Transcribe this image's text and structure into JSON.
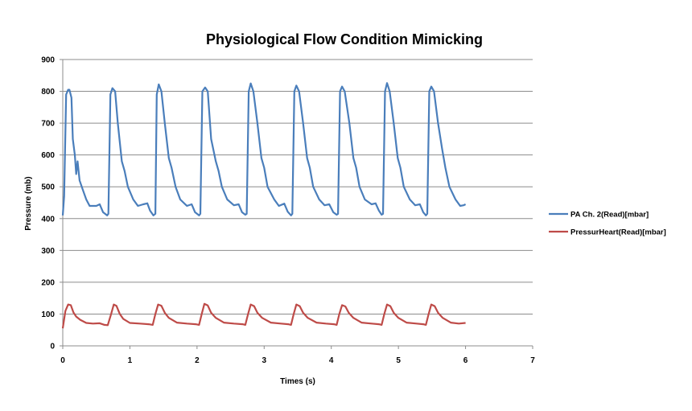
{
  "chart_data": {
    "type": "line",
    "title": "Physiological Flow Condition Mimicking",
    "xlabel": "Times (s)",
    "ylabel": "Pressure (mb)",
    "xlim": [
      0,
      7
    ],
    "ylim": [
      0,
      900
    ],
    "x_ticks": [
      "0",
      "1",
      "2",
      "3",
      "4",
      "5",
      "6",
      "7"
    ],
    "y_ticks": [
      "0",
      "100",
      "200",
      "300",
      "400",
      "500",
      "600",
      "700",
      "800",
      "900"
    ],
    "grid": "horizontal",
    "legend_position": "right",
    "series": [
      {
        "name": "PA Ch.  2(Read)[mbar]",
        "color": "#4a7ebb",
        "points": [
          [
            0.0,
            410
          ],
          [
            0.02,
            470
          ],
          [
            0.05,
            790
          ],
          [
            0.08,
            805
          ],
          [
            0.1,
            805
          ],
          [
            0.13,
            780
          ],
          [
            0.15,
            650
          ],
          [
            0.18,
            600
          ],
          [
            0.2,
            540
          ],
          [
            0.22,
            580
          ],
          [
            0.25,
            520
          ],
          [
            0.3,
            490
          ],
          [
            0.35,
            460
          ],
          [
            0.4,
            440
          ],
          [
            0.5,
            440
          ],
          [
            0.55,
            445
          ],
          [
            0.6,
            420
          ],
          [
            0.66,
            410
          ],
          [
            0.68,
            415
          ],
          [
            0.71,
            790
          ],
          [
            0.74,
            810
          ],
          [
            0.78,
            800
          ],
          [
            0.82,
            700
          ],
          [
            0.88,
            580
          ],
          [
            0.92,
            550
          ],
          [
            0.97,
            500
          ],
          [
            1.05,
            460
          ],
          [
            1.12,
            440
          ],
          [
            1.2,
            445
          ],
          [
            1.26,
            448
          ],
          [
            1.3,
            425
          ],
          [
            1.35,
            410
          ],
          [
            1.38,
            415
          ],
          [
            1.4,
            790
          ],
          [
            1.43,
            822
          ],
          [
            1.47,
            800
          ],
          [
            1.52,
            700
          ],
          [
            1.58,
            590
          ],
          [
            1.62,
            560
          ],
          [
            1.68,
            500
          ],
          [
            1.75,
            460
          ],
          [
            1.85,
            440
          ],
          [
            1.92,
            445
          ],
          [
            1.97,
            420
          ],
          [
            2.03,
            410
          ],
          [
            2.05,
            415
          ],
          [
            2.08,
            800
          ],
          [
            2.12,
            812
          ],
          [
            2.16,
            800
          ],
          [
            2.21,
            650
          ],
          [
            2.28,
            580
          ],
          [
            2.32,
            550
          ],
          [
            2.37,
            500
          ],
          [
            2.45,
            460
          ],
          [
            2.55,
            442
          ],
          [
            2.62,
            445
          ],
          [
            2.67,
            420
          ],
          [
            2.72,
            412
          ],
          [
            2.74,
            415
          ],
          [
            2.77,
            800
          ],
          [
            2.8,
            825
          ],
          [
            2.84,
            800
          ],
          [
            2.9,
            700
          ],
          [
            2.96,
            590
          ],
          [
            3.0,
            560
          ],
          [
            3.05,
            500
          ],
          [
            3.15,
            460
          ],
          [
            3.22,
            440
          ],
          [
            3.3,
            447
          ],
          [
            3.35,
            422
          ],
          [
            3.4,
            410
          ],
          [
            3.42,
            415
          ],
          [
            3.45,
            800
          ],
          [
            3.48,
            818
          ],
          [
            3.52,
            800
          ],
          [
            3.58,
            700
          ],
          [
            3.64,
            590
          ],
          [
            3.68,
            560
          ],
          [
            3.73,
            500
          ],
          [
            3.82,
            460
          ],
          [
            3.9,
            442
          ],
          [
            3.97,
            445
          ],
          [
            4.03,
            420
          ],
          [
            4.08,
            412
          ],
          [
            4.1,
            415
          ],
          [
            4.13,
            800
          ],
          [
            4.16,
            815
          ],
          [
            4.2,
            800
          ],
          [
            4.27,
            700
          ],
          [
            4.33,
            590
          ],
          [
            4.37,
            560
          ],
          [
            4.42,
            500
          ],
          [
            4.5,
            460
          ],
          [
            4.6,
            445
          ],
          [
            4.66,
            448
          ],
          [
            4.71,
            425
          ],
          [
            4.75,
            412
          ],
          [
            4.77,
            415
          ],
          [
            4.8,
            800
          ],
          [
            4.83,
            826
          ],
          [
            4.87,
            800
          ],
          [
            4.93,
            700
          ],
          [
            4.99,
            590
          ],
          [
            5.03,
            560
          ],
          [
            5.08,
            500
          ],
          [
            5.17,
            460
          ],
          [
            5.25,
            442
          ],
          [
            5.32,
            445
          ],
          [
            5.37,
            420
          ],
          [
            5.41,
            410
          ],
          [
            5.43,
            415
          ],
          [
            5.46,
            800
          ],
          [
            5.49,
            815
          ],
          [
            5.53,
            800
          ],
          [
            5.59,
            700
          ],
          [
            5.65,
            620
          ],
          [
            5.7,
            560
          ],
          [
            5.76,
            500
          ],
          [
            5.85,
            460
          ],
          [
            5.92,
            440
          ],
          [
            5.97,
            442
          ],
          [
            6.0,
            445
          ]
        ]
      },
      {
        "name": "PressurHeart(Read)[mbar]",
        "color": "#be4b48",
        "points": [
          [
            0.0,
            55
          ],
          [
            0.04,
            110
          ],
          [
            0.08,
            130
          ],
          [
            0.12,
            128
          ],
          [
            0.16,
            105
          ],
          [
            0.2,
            92
          ],
          [
            0.26,
            82
          ],
          [
            0.35,
            72
          ],
          [
            0.45,
            70
          ],
          [
            0.55,
            71
          ],
          [
            0.62,
            66
          ],
          [
            0.67,
            65
          ],
          [
            0.72,
            100
          ],
          [
            0.76,
            130
          ],
          [
            0.8,
            126
          ],
          [
            0.85,
            100
          ],
          [
            0.9,
            85
          ],
          [
            1.0,
            72
          ],
          [
            1.15,
            70
          ],
          [
            1.28,
            68
          ],
          [
            1.34,
            66
          ],
          [
            1.38,
            100
          ],
          [
            1.42,
            130
          ],
          [
            1.47,
            126
          ],
          [
            1.52,
            104
          ],
          [
            1.58,
            88
          ],
          [
            1.7,
            73
          ],
          [
            1.85,
            70
          ],
          [
            1.98,
            68
          ],
          [
            2.03,
            66
          ],
          [
            2.07,
            100
          ],
          [
            2.11,
            132
          ],
          [
            2.16,
            127
          ],
          [
            2.21,
            104
          ],
          [
            2.28,
            88
          ],
          [
            2.4,
            73
          ],
          [
            2.55,
            70
          ],
          [
            2.68,
            68
          ],
          [
            2.72,
            66
          ],
          [
            2.76,
            100
          ],
          [
            2.8,
            130
          ],
          [
            2.85,
            125
          ],
          [
            2.9,
            104
          ],
          [
            2.97,
            88
          ],
          [
            3.1,
            73
          ],
          [
            3.25,
            70
          ],
          [
            3.36,
            68
          ],
          [
            3.4,
            66
          ],
          [
            3.44,
            100
          ],
          [
            3.48,
            130
          ],
          [
            3.53,
            125
          ],
          [
            3.58,
            104
          ],
          [
            3.65,
            88
          ],
          [
            3.78,
            73
          ],
          [
            3.92,
            70
          ],
          [
            4.04,
            68
          ],
          [
            4.08,
            66
          ],
          [
            4.12,
            100
          ],
          [
            4.16,
            128
          ],
          [
            4.21,
            124
          ],
          [
            4.26,
            104
          ],
          [
            4.33,
            88
          ],
          [
            4.45,
            73
          ],
          [
            4.6,
            70
          ],
          [
            4.71,
            68
          ],
          [
            4.75,
            66
          ],
          [
            4.79,
            100
          ],
          [
            4.83,
            130
          ],
          [
            4.88,
            125
          ],
          [
            4.93,
            104
          ],
          [
            5.0,
            88
          ],
          [
            5.12,
            73
          ],
          [
            5.27,
            70
          ],
          [
            5.37,
            68
          ],
          [
            5.41,
            66
          ],
          [
            5.45,
            100
          ],
          [
            5.49,
            130
          ],
          [
            5.54,
            125
          ],
          [
            5.59,
            104
          ],
          [
            5.66,
            88
          ],
          [
            5.78,
            73
          ],
          [
            5.9,
            70
          ],
          [
            6.0,
            72
          ]
        ]
      }
    ]
  }
}
